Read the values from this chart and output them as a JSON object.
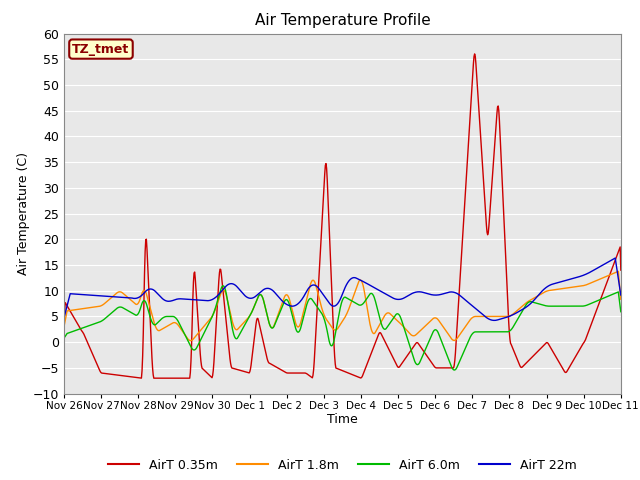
{
  "title": "Air Temperature Profile",
  "xlabel": "Time",
  "ylabel": "Air Temperature (C)",
  "ylim": [
    -10,
    60
  ],
  "yticks": [
    -10,
    -5,
    0,
    5,
    10,
    15,
    20,
    25,
    30,
    35,
    40,
    45,
    50,
    55,
    60
  ],
  "xtick_labels": [
    "Nov 26",
    "Nov 27",
    "Nov 28",
    "Nov 29",
    "Nov 30",
    "Dec 1",
    "Dec 2",
    "Dec 3",
    "Dec 4",
    "Dec 5",
    "Dec 6",
    "Dec 7",
    "Dec 8",
    "Dec 9",
    "Dec 10",
    "Dec 11"
  ],
  "bg_color": "#e8e8e8",
  "grid_color": "#ffffff",
  "label_box_text": "TZ_tmet",
  "label_box_facecolor": "#ffffcc",
  "label_box_edgecolor": "#8b0000",
  "label_box_textcolor": "#8b0000",
  "line_colors": [
    "#cc0000",
    "#ff8c00",
    "#00bb00",
    "#0000cc"
  ],
  "line_labels": [
    "AirT 0.35m",
    "AirT 1.8m",
    "AirT 6.0m",
    "AirT 22m"
  ],
  "line_width": 1.0,
  "total_days": 15,
  "figsize": [
    6.4,
    4.8
  ],
  "dpi": 100
}
